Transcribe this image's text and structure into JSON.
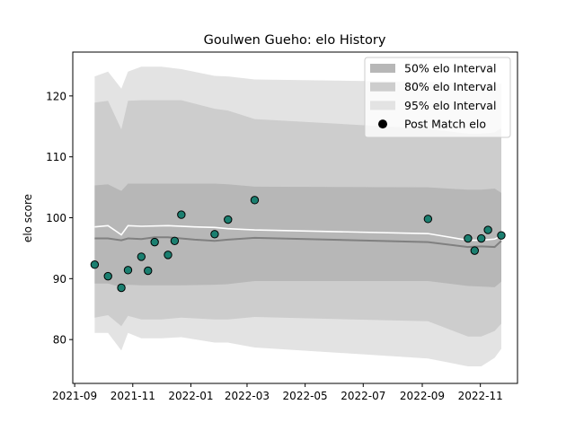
{
  "chart_data": {
    "type": "line",
    "title": "Goulwen Gueho: elo History",
    "xlabel": "",
    "ylabel": "elo score",
    "xlim": [
      "2021-08-30",
      "2022-12-10"
    ],
    "ylim": [
      72.8,
      127.2
    ],
    "x_ticks": [
      "2021-09",
      "2021-11",
      "2022-01",
      "2022-03",
      "2022-05",
      "2022-07",
      "2022-09",
      "2022-11"
    ],
    "y_ticks": [
      80,
      90,
      100,
      110,
      120
    ],
    "grid": false,
    "legend_position": "top-right",
    "legend": [
      {
        "label": "50% elo Interval",
        "kind": "band",
        "color": "#b7b7b7"
      },
      {
        "label": "80% elo Interval",
        "kind": "band",
        "color": "#cdcdcd"
      },
      {
        "label": "95% elo Interval",
        "kind": "band",
        "color": "#e3e3e3"
      },
      {
        "label": "Post Match elo",
        "kind": "marker",
        "color": "#000000"
      }
    ],
    "colors": {
      "band95": "#e3e3e3",
      "band80": "#cdcdcd",
      "band50": "#b7b7b7",
      "median_line": "#808080",
      "mean_line": "#ffffff",
      "marker_fill": "#1b7f70",
      "marker_edge": "#000000"
    },
    "bands": {
      "x": [
        "2021-09-22",
        "2021-10-06",
        "2021-10-20",
        "2021-10-27",
        "2021-11-10",
        "2021-12-01",
        "2021-12-22",
        "2022-01-26",
        "2022-02-09",
        "2022-03-09",
        "2022-09-07",
        "2022-10-19",
        "2022-11-02",
        "2022-11-16",
        "2022-11-23"
      ],
      "low95": [
        81.1,
        81.1,
        78.2,
        81.1,
        80.2,
        80.2,
        80.4,
        79.5,
        79.5,
        78.7,
        76.9,
        75.6,
        75.6,
        77.0,
        78.5
      ],
      "low80": [
        83.6,
        84.0,
        82.2,
        83.9,
        83.3,
        83.3,
        83.6,
        83.3,
        83.3,
        83.7,
        83.0,
        80.5,
        80.5,
        81.4,
        82.6
      ],
      "low50": [
        89.2,
        89.2,
        88.6,
        89.0,
        88.9,
        88.9,
        88.9,
        89.0,
        89.1,
        89.6,
        89.6,
        88.8,
        88.7,
        88.6,
        89.5
      ],
      "high50": [
        105.3,
        105.5,
        104.4,
        105.6,
        105.6,
        105.6,
        105.6,
        105.6,
        105.5,
        105.1,
        105.0,
        104.6,
        104.6,
        104.8,
        104.1
      ],
      "high80": [
        118.9,
        119.2,
        114.5,
        119.2,
        119.3,
        119.3,
        119.3,
        117.9,
        117.6,
        116.2,
        114.6,
        113.8,
        113.8,
        114.0,
        114.7
      ],
      "high95": [
        123.2,
        124.0,
        121.2,
        124.0,
        124.8,
        124.8,
        124.4,
        123.3,
        123.2,
        122.7,
        122.3,
        122.0,
        122.0,
        122.0,
        122.0
      ]
    },
    "series": [
      {
        "kind": "line",
        "role": "median",
        "x": [
          "2021-09-22",
          "2021-10-06",
          "2021-10-20",
          "2021-10-27",
          "2021-11-10",
          "2021-11-24",
          "2021-12-08",
          "2022-01-05",
          "2022-01-26",
          "2022-02-09",
          "2022-03-09",
          "2022-09-07",
          "2022-10-19",
          "2022-11-02",
          "2022-11-16",
          "2022-11-23"
        ],
        "values": [
          96.6,
          96.6,
          96.3,
          96.6,
          96.5,
          96.8,
          96.8,
          96.4,
          96.2,
          96.4,
          96.7,
          96.0,
          95.2,
          95.3,
          95.2,
          96.2
        ]
      },
      {
        "kind": "line",
        "role": "mean",
        "x": [
          "2021-09-22",
          "2021-10-06",
          "2021-10-20",
          "2021-10-27",
          "2021-11-10",
          "2021-12-08",
          "2022-01-05",
          "2022-01-26",
          "2022-02-09",
          "2022-03-09",
          "2022-09-07",
          "2022-10-19",
          "2022-11-02",
          "2022-11-16",
          "2022-11-23"
        ],
        "values": [
          98.5,
          98.7,
          97.2,
          98.7,
          98.6,
          98.7,
          98.5,
          98.4,
          98.2,
          98.0,
          97.4,
          96.3,
          96.3,
          96.5,
          97.0
        ]
      },
      {
        "kind": "scatter",
        "name": "Post Match elo",
        "x": [
          "2021-09-22",
          "2021-10-06",
          "2021-10-20",
          "2021-10-27",
          "2021-11-10",
          "2021-11-17",
          "2021-11-24",
          "2021-12-08",
          "2021-12-15",
          "2021-12-22",
          "2022-01-26",
          "2022-02-09",
          "2022-03-09",
          "2022-09-07",
          "2022-10-19",
          "2022-10-26",
          "2022-11-02",
          "2022-11-09",
          "2022-11-23"
        ],
        "values": [
          92.3,
          90.4,
          88.5,
          91.4,
          93.6,
          91.3,
          96.0,
          93.9,
          96.2,
          100.5,
          97.3,
          99.7,
          102.9,
          99.8,
          96.6,
          94.6,
          96.6,
          98.0,
          97.1
        ]
      }
    ]
  }
}
